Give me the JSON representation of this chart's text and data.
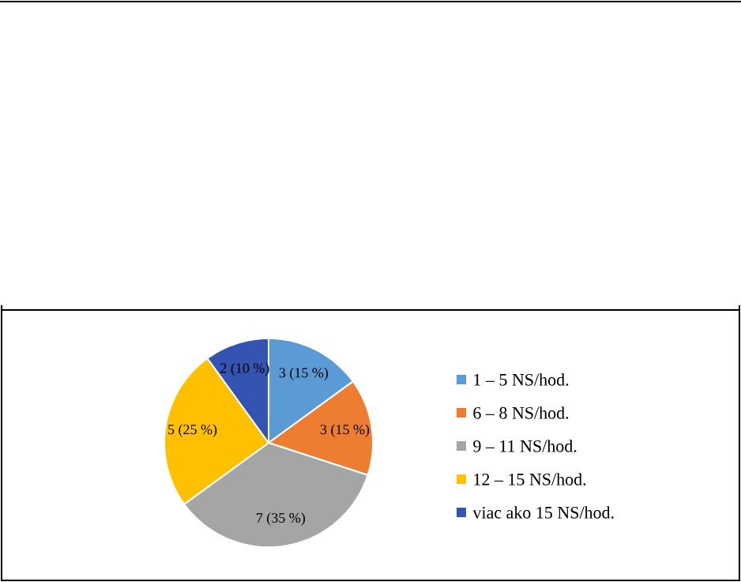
{
  "chart_data": {
    "type": "pie",
    "categories": [
      "1 – 5 NS/hod.",
      "6 – 8 NS/hod.",
      "9 – 11 NS/hod.",
      "12 – 15 NS/hod.",
      "viac ako 15 NS/hod."
    ],
    "values": [
      3,
      3,
      7,
      5,
      2
    ],
    "colors": [
      "#5b9bd5",
      "#ed7d31",
      "#a5a5a5",
      "#ffc000",
      "#3553b0"
    ],
    "value_labels": [
      "3 (15 %)",
      "3 (15 %)",
      "7 (35 %)",
      "5 (25 %)",
      "2 (10 %)"
    ],
    "legend": "right"
  }
}
